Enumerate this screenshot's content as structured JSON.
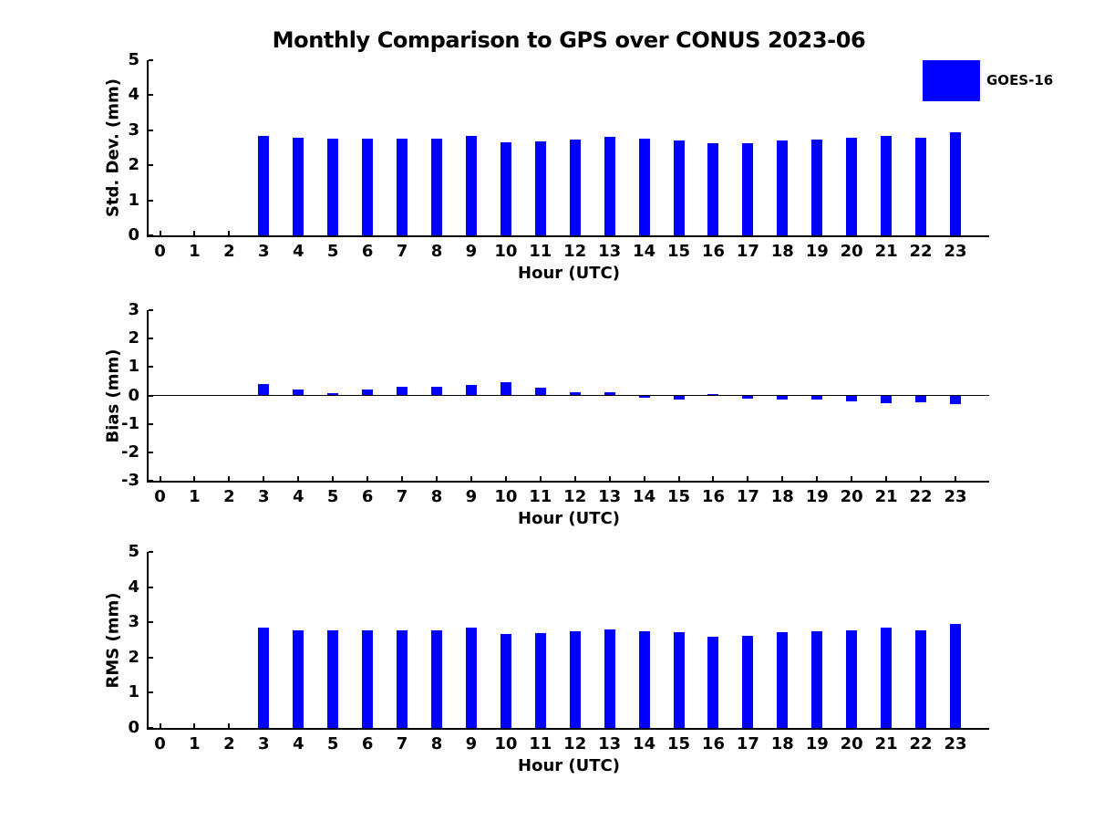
{
  "figure_title": "Monthly Comparison to GPS over CONUS 2023-06",
  "legend": {
    "label": "GOES-16",
    "swatch_color": "#0000FF",
    "position": "upper right"
  },
  "colors": {
    "bar": "#0000FF",
    "axis": "#000000",
    "text": "#000000",
    "background": "#FFFFFF"
  },
  "chart_data": [
    {
      "type": "bar",
      "ylabel": "Std. Dev. (mm)",
      "xlabel": "Hour (UTC)",
      "ylim": [
        0,
        5
      ],
      "yticks": [
        0,
        1,
        2,
        3,
        4,
        5
      ],
      "grid": false,
      "categories": [
        0,
        1,
        2,
        3,
        4,
        5,
        6,
        7,
        8,
        9,
        10,
        11,
        12,
        13,
        14,
        15,
        16,
        17,
        18,
        19,
        20,
        21,
        22,
        23
      ],
      "series": [
        {
          "name": "GOES-16",
          "values": [
            null,
            null,
            null,
            2.85,
            2.78,
            2.77,
            2.75,
            2.75,
            2.77,
            2.83,
            2.65,
            2.69,
            2.74,
            2.8,
            2.76,
            2.72,
            2.62,
            2.63,
            2.7,
            2.73,
            2.78,
            2.85,
            2.78,
            2.93
          ]
        }
      ]
    },
    {
      "type": "bar",
      "ylabel": "Bias (mm)",
      "xlabel": "Hour (UTC)",
      "ylim": [
        -3,
        3
      ],
      "yticks": [
        -3,
        -2,
        -1,
        0,
        1,
        2,
        3
      ],
      "zero_line": true,
      "grid": false,
      "categories": [
        0,
        1,
        2,
        3,
        4,
        5,
        6,
        7,
        8,
        9,
        10,
        11,
        12,
        13,
        14,
        15,
        16,
        17,
        18,
        19,
        20,
        21,
        22,
        23
      ],
      "series": [
        {
          "name": "GOES-16",
          "values": [
            null,
            null,
            null,
            0.4,
            0.21,
            0.08,
            0.2,
            0.32,
            0.3,
            0.37,
            0.46,
            0.27,
            0.12,
            0.11,
            -0.08,
            -0.15,
            0.05,
            -0.12,
            -0.14,
            -0.15,
            -0.22,
            -0.28,
            -0.23,
            -0.31
          ]
        }
      ]
    },
    {
      "type": "bar",
      "ylabel": "RMS (mm)",
      "xlabel": "Hour (UTC)",
      "ylim": [
        0,
        5
      ],
      "yticks": [
        0,
        1,
        2,
        3,
        4,
        5
      ],
      "grid": false,
      "categories": [
        0,
        1,
        2,
        3,
        4,
        5,
        6,
        7,
        8,
        9,
        10,
        11,
        12,
        13,
        14,
        15,
        16,
        17,
        18,
        19,
        20,
        21,
        22,
        23
      ],
      "series": [
        {
          "name": "GOES-16",
          "values": [
            null,
            null,
            null,
            2.86,
            2.78,
            2.78,
            2.76,
            2.76,
            2.78,
            2.85,
            2.66,
            2.7,
            2.75,
            2.81,
            2.74,
            2.73,
            2.6,
            2.62,
            2.71,
            2.74,
            2.78,
            2.86,
            2.78,
            2.96
          ]
        }
      ]
    }
  ]
}
